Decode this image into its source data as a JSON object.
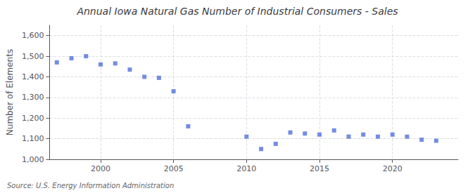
{
  "chart_data": {
    "type": "scatter",
    "title": "Annual Iowa Natural Gas Number of Industrial Consumers - Sales",
    "ylabel": "Number of Elements",
    "annotation": "Source: U.S. Energy Information Administration",
    "marker": "square",
    "x": [
      1997,
      1998,
      1999,
      2000,
      2001,
      2002,
      2003,
      2004,
      2005,
      2006,
      2010,
      2011,
      2012,
      2013,
      2014,
      2015,
      2016,
      2017,
      2018,
      2019,
      2020,
      2021,
      2022,
      2023
    ],
    "values": [
      1470,
      1490,
      1500,
      1460,
      1465,
      1435,
      1400,
      1395,
      1330,
      1160,
      1110,
      1050,
      1075,
      1130,
      1125,
      1120,
      1140,
      1110,
      1120,
      1110,
      1120,
      1110,
      1095,
      1090
    ],
    "xlim": [
      1996.5,
      2024.5
    ],
    "xticks": [
      2000,
      2005,
      2010,
      2015,
      2020
    ],
    "ylim": [
      1000,
      1650
    ],
    "yticks": [
      {
        "value": 1000,
        "label": "1,000"
      },
      {
        "value": 1100,
        "label": "1,100"
      },
      {
        "value": 1200,
        "label": "1,200"
      },
      {
        "value": 1300,
        "label": "1,300"
      },
      {
        "value": 1400,
        "label": "1,400"
      },
      {
        "value": 1500,
        "label": "1,500"
      },
      {
        "value": 1600,
        "label": "1,600"
      }
    ],
    "grid": true
  }
}
